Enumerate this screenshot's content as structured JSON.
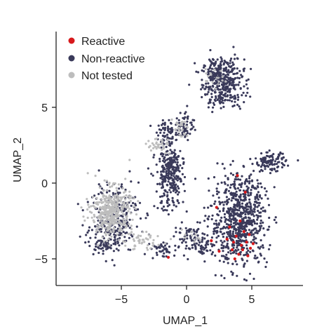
{
  "chart_data": {
    "type": "scatter",
    "xlabel": "UMAP_1",
    "ylabel": "UMAP_2",
    "xlim": [
      -9.2,
      8.8
    ],
    "ylim": [
      -6.7,
      9.7
    ],
    "xticks": [
      -5,
      0,
      5
    ],
    "yticks": [
      -5,
      0,
      5
    ],
    "xtick_labels": [
      "−5",
      "0",
      "5"
    ],
    "ytick_labels": [
      "−5",
      "0",
      "5"
    ],
    "grid": false,
    "legend_position": "top-left",
    "series": [
      {
        "name": "Reactive",
        "color": "#d7191c",
        "points": [
          [
            3.8,
            -3.5
          ],
          [
            4.2,
            -4.1
          ],
          [
            4.6,
            -3.9
          ],
          [
            3.5,
            -4.4
          ],
          [
            4.0,
            -4.7
          ],
          [
            4.9,
            -4.3
          ],
          [
            3.1,
            -3.7
          ],
          [
            4.4,
            -3.2
          ],
          [
            4.7,
            -4.8
          ],
          [
            3.7,
            -5.0
          ],
          [
            2.5,
            -4.5
          ],
          [
            3.3,
            -2.9
          ],
          [
            4.1,
            -2.5
          ],
          [
            4.5,
            -0.6
          ],
          [
            3.9,
            0.5
          ],
          [
            4.8,
            -3.4
          ],
          [
            3.6,
            -3.9
          ],
          [
            1.9,
            -3.8
          ],
          [
            2.3,
            -1.6
          ],
          [
            5.1,
            -4.0
          ],
          [
            -1.4,
            -4.9
          ],
          [
            4.3,
            -4.4
          ]
        ]
      },
      {
        "name": "Non-reactive",
        "color": "#3a3a5a",
        "clusters": [
          {
            "cx": 2.8,
            "cy": 6.6,
            "sx": 0.8,
            "sy": 0.8,
            "n": 360
          },
          {
            "cx": 2.3,
            "cy": 7.4,
            "sx": 0.45,
            "sy": 0.45,
            "n": 60
          },
          {
            "cx": 4.0,
            "cy": -2.7,
            "sx": 1.1,
            "sy": 1.4,
            "n": 650
          },
          {
            "cx": 4.5,
            "cy": -0.5,
            "sx": 0.6,
            "sy": 0.6,
            "n": 80
          },
          {
            "cx": 6.4,
            "cy": 1.4,
            "sx": 0.6,
            "sy": 0.3,
            "n": 110
          },
          {
            "cx": -1.3,
            "cy": 0.2,
            "sx": 0.55,
            "sy": 1.0,
            "n": 240
          },
          {
            "cx": -1.0,
            "cy": 1.5,
            "sx": 0.35,
            "sy": 0.4,
            "n": 50
          },
          {
            "cx": -0.1,
            "cy": 3.8,
            "sx": 0.35,
            "sy": 0.5,
            "n": 60
          },
          {
            "cx": -1.4,
            "cy": 3.3,
            "sx": 0.45,
            "sy": 0.4,
            "n": 70
          },
          {
            "cx": 0.3,
            "cy": -3.7,
            "sx": 0.6,
            "sy": 0.45,
            "n": 70
          },
          {
            "cx": 1.4,
            "cy": -4.1,
            "sx": 0.35,
            "sy": 0.3,
            "n": 35
          },
          {
            "cx": -1.8,
            "cy": -4.4,
            "sx": 0.45,
            "sy": 0.3,
            "n": 40
          },
          {
            "cx": -5.6,
            "cy": -2.0,
            "sx": 1.0,
            "sy": 1.2,
            "n": 210
          },
          {
            "cx": -6.3,
            "cy": -3.4,
            "sx": 0.8,
            "sy": 0.5,
            "n": 60
          },
          {
            "cx": -6.0,
            "cy": -4.2,
            "sx": 0.5,
            "sy": 0.35,
            "n": 40
          }
        ]
      },
      {
        "name": "Not tested",
        "color": "#bdbdbd",
        "clusters": [
          {
            "cx": -5.8,
            "cy": -1.9,
            "sx": 0.75,
            "sy": 0.8,
            "n": 380
          },
          {
            "cx": -3.4,
            "cy": -3.8,
            "sx": 0.8,
            "sy": 0.3,
            "n": 45
          },
          {
            "cx": -2.2,
            "cy": 2.5,
            "sx": 0.55,
            "sy": 0.25,
            "n": 35
          },
          {
            "cx": -0.5,
            "cy": 3.5,
            "sx": 0.3,
            "sy": 0.3,
            "n": 25
          },
          {
            "cx": 2.2,
            "cy": 7.0,
            "sx": 0.4,
            "sy": 0.4,
            "n": 18
          },
          {
            "cx": 0.6,
            "cy": -3.4,
            "sx": 0.4,
            "sy": 0.3,
            "n": 12
          }
        ]
      }
    ]
  }
}
